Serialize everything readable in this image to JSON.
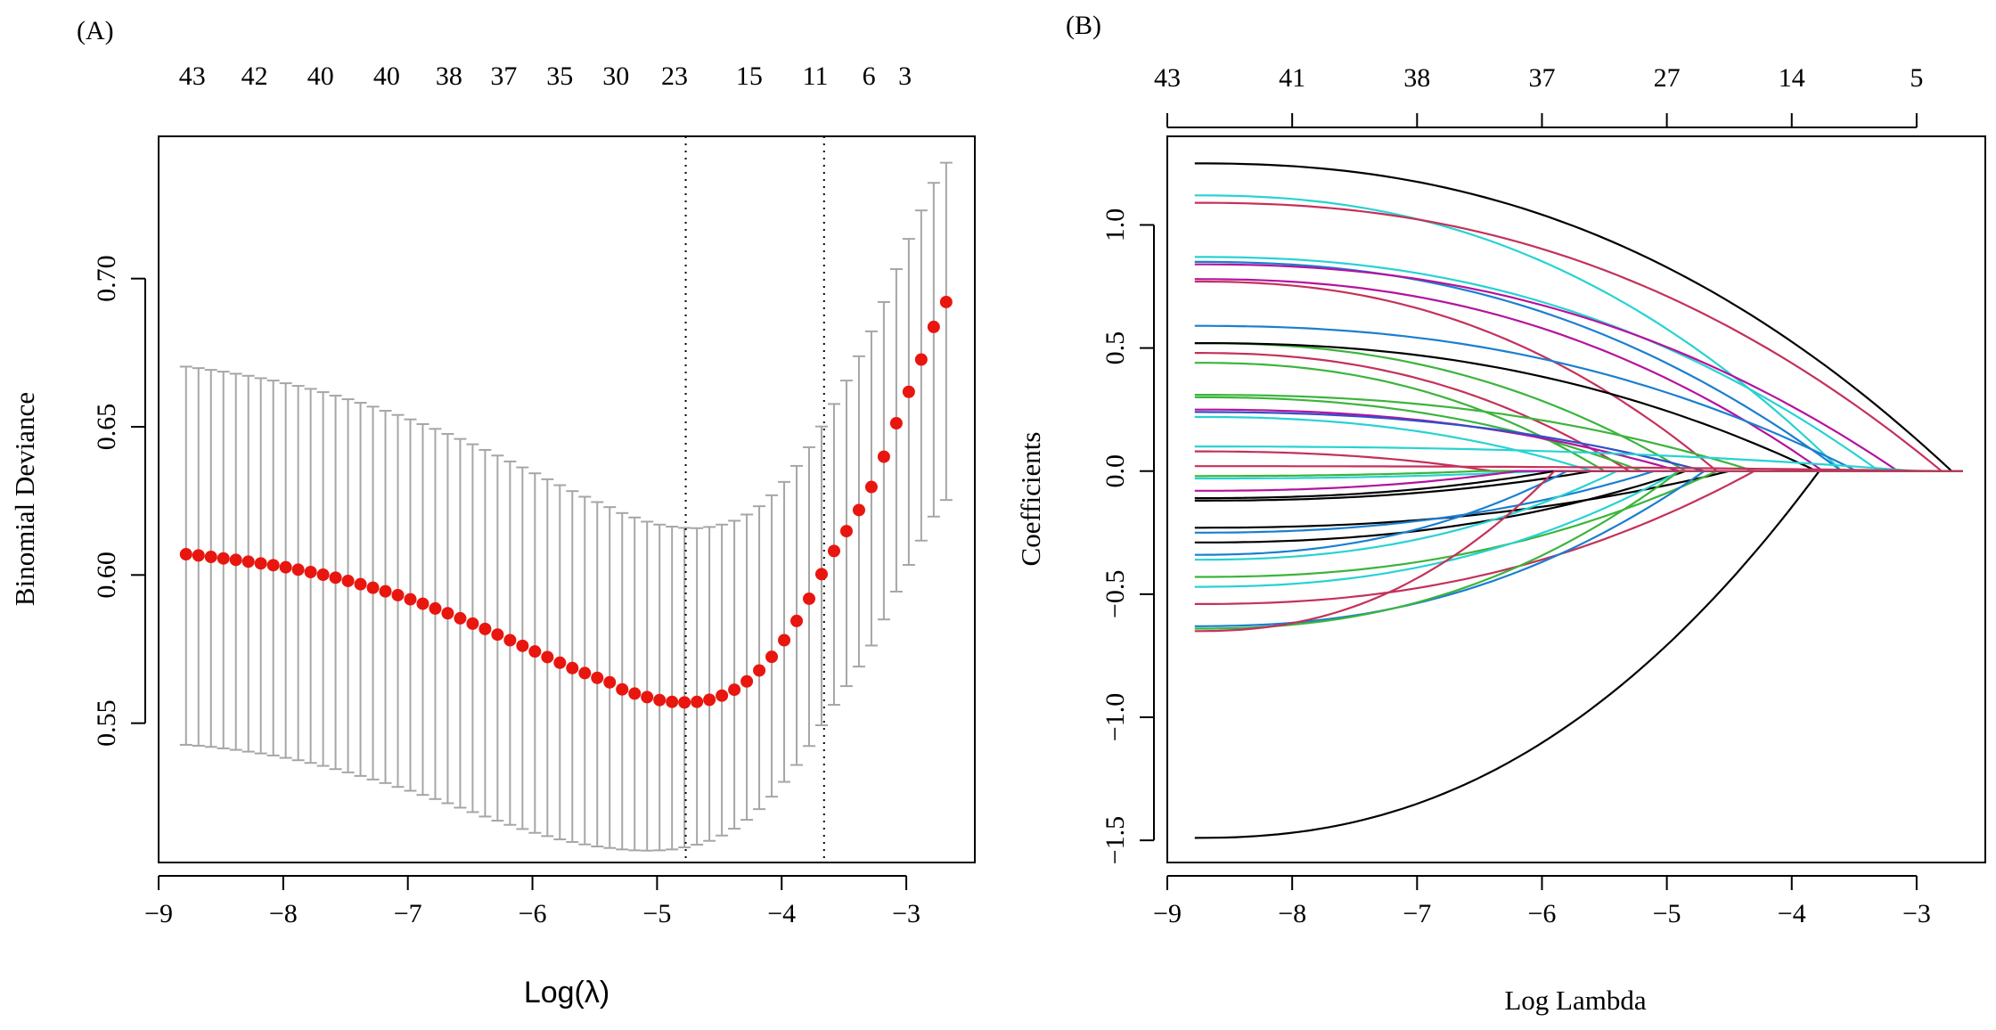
{
  "chart_data": [
    {
      "panel_label": "(A)",
      "type": "scatter",
      "subtype": "cross-validation error plot with error bars",
      "title": "",
      "xlabel": "Log(λ)",
      "ylabel": "Binomial Deviance",
      "xlim": [
        -9.0,
        -2.45
      ],
      "ylim": [
        0.503,
        0.748
      ],
      "x_ticks": [
        -9,
        -8,
        -7,
        -6,
        -5,
        -4,
        -3
      ],
      "x_tick_labels": [
        "−9",
        "−8",
        "−7",
        "−6",
        "−5",
        "−4",
        "−3"
      ],
      "y_ticks": [
        0.55,
        0.6,
        0.65,
        0.7
      ],
      "y_tick_labels": [
        "0.55",
        "0.60",
        "0.65",
        "0.70"
      ],
      "top_axis_counts": [
        {
          "x": -8.73,
          "label": "43"
        },
        {
          "x": -8.23,
          "label": "42"
        },
        {
          "x": -7.7,
          "label": "40"
        },
        {
          "x": -7.17,
          "label": "40"
        },
        {
          "x": -6.67,
          "label": "38"
        },
        {
          "x": -6.23,
          "label": "37"
        },
        {
          "x": -5.78,
          "label": "35"
        },
        {
          "x": -5.33,
          "label": "30"
        },
        {
          "x": -4.86,
          "label": "23"
        },
        {
          "x": -4.26,
          "label": "15"
        },
        {
          "x": -3.73,
          "label": "11"
        },
        {
          "x": -3.3,
          "label": "6"
        },
        {
          "x": -3.01,
          "label": "3"
        }
      ],
      "vlines": [
        -4.77,
        -3.66
      ],
      "grid": false,
      "point_color": "#e8160f",
      "errorbar_color": "#a6a6a6",
      "series": [
        {
          "name": "cv_mean",
          "x": [
            -8.78,
            -8.68,
            -8.58,
            -8.48,
            -8.38,
            -8.28,
            -8.18,
            -8.08,
            -7.98,
            -7.88,
            -7.78,
            -7.68,
            -7.58,
            -7.48,
            -7.38,
            -7.28,
            -7.18,
            -7.08,
            -6.98,
            -6.88,
            -6.78,
            -6.68,
            -6.58,
            -6.48,
            -6.38,
            -6.28,
            -6.18,
            -6.08,
            -5.98,
            -5.88,
            -5.78,
            -5.68,
            -5.58,
            -5.48,
            -5.38,
            -5.28,
            -5.18,
            -5.08,
            -4.98,
            -4.88,
            -4.78,
            -4.68,
            -4.58,
            -4.48,
            -4.38,
            -4.28,
            -4.18,
            -4.08,
            -3.98,
            -3.88,
            -3.78,
            -3.68,
            -3.58,
            -3.48,
            -3.38,
            -3.28,
            -3.18,
            -3.08,
            -2.98,
            -2.88,
            -2.78,
            -2.68
          ],
          "y": [
            0.607,
            0.6066,
            0.6061,
            0.6056,
            0.6051,
            0.6045,
            0.6039,
            0.6033,
            0.6026,
            0.6018,
            0.601,
            0.6001,
            0.5991,
            0.598,
            0.5969,
            0.5957,
            0.5945,
            0.5932,
            0.5918,
            0.5903,
            0.5887,
            0.5871,
            0.5854,
            0.5836,
            0.5818,
            0.5799,
            0.578,
            0.5761,
            0.5742,
            0.5723,
            0.5704,
            0.5686,
            0.5669,
            0.5653,
            0.5638,
            0.5614,
            0.56,
            0.5588,
            0.5578,
            0.5572,
            0.557,
            0.5572,
            0.5579,
            0.5593,
            0.5613,
            0.5641,
            0.5678,
            0.5724,
            0.578,
            0.5845,
            0.592,
            0.6003,
            0.6081,
            0.6148,
            0.6219,
            0.6297,
            0.6399,
            0.6512,
            0.6618,
            0.6727,
            0.6837,
            0.6921
          ],
          "lower": [
            0.5427,
            0.5424,
            0.542,
            0.5415,
            0.541,
            0.5404,
            0.5398,
            0.5391,
            0.5383,
            0.5375,
            0.5366,
            0.5356,
            0.5345,
            0.5334,
            0.5322,
            0.531,
            0.5298,
            0.5285,
            0.5272,
            0.5258,
            0.5244,
            0.523,
            0.5215,
            0.52,
            0.5185,
            0.5171,
            0.5157,
            0.5143,
            0.513,
            0.5119,
            0.5108,
            0.5099,
            0.5091,
            0.5084,
            0.5079,
            0.5074,
            0.5071,
            0.507,
            0.5071,
            0.5074,
            0.5081,
            0.509,
            0.5103,
            0.5121,
            0.5144,
            0.5174,
            0.521,
            0.5252,
            0.5302,
            0.5359,
            0.5423,
            0.5493,
            0.5562,
            0.5625,
            0.5691,
            0.5762,
            0.585,
            0.5944,
            0.6034,
            0.6116,
            0.6197,
            0.6253
          ],
          "upper": [
            0.6703,
            0.6698,
            0.6692,
            0.6686,
            0.6679,
            0.6672,
            0.6664,
            0.6656,
            0.6647,
            0.6638,
            0.6628,
            0.6617,
            0.6605,
            0.6593,
            0.6581,
            0.6568,
            0.6554,
            0.654,
            0.6525,
            0.6509,
            0.6493,
            0.6476,
            0.6459,
            0.6441,
            0.6422,
            0.6403,
            0.6383,
            0.6363,
            0.6343,
            0.6323,
            0.6303,
            0.6283,
            0.6264,
            0.6246,
            0.6229,
            0.6209,
            0.6194,
            0.618,
            0.617,
            0.6163,
            0.6159,
            0.6158,
            0.6162,
            0.617,
            0.6183,
            0.6204,
            0.6232,
            0.6269,
            0.6314,
            0.6368,
            0.6431,
            0.6501,
            0.6577,
            0.6656,
            0.6738,
            0.6822,
            0.6921,
            0.7032,
            0.7134,
            0.723,
            0.7323,
            0.7391
          ]
        }
      ]
    },
    {
      "panel_label": "(B)",
      "type": "line",
      "subtype": "lasso coefficient paths",
      "title": "",
      "xlabel": "Log Lambda",
      "ylabel": "Coefficients",
      "xlim": [
        -9.0,
        -2.45
      ],
      "ylim": [
        -1.59,
        1.36
      ],
      "x_ticks": [
        -9,
        -8,
        -7,
        -6,
        -5,
        -4,
        -3
      ],
      "x_tick_labels": [
        "−9",
        "−8",
        "−7",
        "−6",
        "−5",
        "−4",
        "−3"
      ],
      "y_ticks": [
        -1.5,
        -1.0,
        -0.5,
        0.0,
        0.5,
        1.0
      ],
      "y_tick_labels": [
        "−1.5",
        "−1.0",
        "−0.5",
        "0.0",
        "0.5",
        "1.0"
      ],
      "top_axis_counts": [
        {
          "x": -9,
          "label": "43"
        },
        {
          "x": -8,
          "label": "41"
        },
        {
          "x": -7,
          "label": "38"
        },
        {
          "x": -6,
          "label": "37"
        },
        {
          "x": -5,
          "label": "27"
        },
        {
          "x": -4,
          "label": "14"
        },
        {
          "x": -3,
          "label": "5"
        }
      ],
      "x_start": -8.78,
      "grid": false,
      "series": [
        {
          "c0": 1.25,
          "zero_at": -2.72,
          "color": "#000000"
        },
        {
          "c0": -1.49,
          "zero_at": -3.78,
          "color": "#000000"
        },
        {
          "c0": 1.12,
          "zero_at": -3.6,
          "color": "#28d2d2"
        },
        {
          "c0": 1.09,
          "zero_at": -2.8,
          "color": "#c4315a"
        },
        {
          "c0": 0.87,
          "zero_at": -3.3,
          "color": "#28d2d2"
        },
        {
          "c0": 0.85,
          "zero_at": -3.6,
          "color": "#1a7fd0"
        },
        {
          "c0": 0.84,
          "zero_at": -3.15,
          "color": "#b4139e"
        },
        {
          "c0": 0.78,
          "zero_at": -3.75,
          "color": "#b4139e"
        },
        {
          "c0": 0.77,
          "zero_at": -4.6,
          "color": "#c4315a"
        },
        {
          "c0": 0.59,
          "zero_at": -3.48,
          "color": "#1a7fd0"
        },
        {
          "c0": 0.52,
          "zero_at": -4.85,
          "color": "#3cb43c"
        },
        {
          "c0": 0.52,
          "zero_at": -3.8,
          "color": "#000000"
        },
        {
          "c0": 0.48,
          "zero_at": -5.3,
          "color": "#c4315a"
        },
        {
          "c0": 0.44,
          "zero_at": -5.5,
          "color": "#3cb43c"
        },
        {
          "c0": 0.31,
          "zero_at": -4.3,
          "color": "#3cb43c"
        },
        {
          "c0": 0.3,
          "zero_at": -5.2,
          "color": "#3cb43c"
        },
        {
          "c0": 0.25,
          "zero_at": -4.9,
          "color": "#b4139e"
        },
        {
          "c0": 0.24,
          "zero_at": -4.7,
          "color": "#3050c8"
        },
        {
          "c0": 0.22,
          "zero_at": -5.6,
          "color": "#28d2d2"
        },
        {
          "c0": 0.1,
          "zero_at": -3.0,
          "color": "#28d2d2"
        },
        {
          "c0": 0.08,
          "zero_at": -6.4,
          "color": "#c4315a"
        },
        {
          "c0": 0.02,
          "zero_at": -2.8,
          "color": "#c4315a"
        },
        {
          "c0": -0.02,
          "zero_at": -6.5,
          "color": "#3cb43c"
        },
        {
          "c0": -0.03,
          "zero_at": -6.0,
          "color": "#28d2d2"
        },
        {
          "c0": -0.08,
          "zero_at": -6.2,
          "color": "#b4139e"
        },
        {
          "c0": -0.11,
          "zero_at": -5.9,
          "color": "#000000"
        },
        {
          "c0": -0.12,
          "zero_at": -5.6,
          "color": "#000000"
        },
        {
          "c0": -0.23,
          "zero_at": -4.5,
          "color": "#000000"
        },
        {
          "c0": -0.25,
          "zero_at": -5.1,
          "color": "#1a7fd0"
        },
        {
          "c0": -0.29,
          "zero_at": -4.85,
          "color": "#000000"
        },
        {
          "c0": -0.34,
          "zero_at": -5.8,
          "color": "#1a7fd0"
        },
        {
          "c0": -0.36,
          "zero_at": -5.4,
          "color": "#28d2d2"
        },
        {
          "c0": -0.43,
          "zero_at": -4.6,
          "color": "#3cb43c"
        },
        {
          "c0": -0.47,
          "zero_at": -4.9,
          "color": "#28d2d2"
        },
        {
          "c0": -0.54,
          "zero_at": -4.3,
          "color": "#c4315a"
        },
        {
          "c0": -0.63,
          "zero_at": -4.7,
          "color": "#1a7fd0"
        },
        {
          "c0": -0.64,
          "zero_at": -4.9,
          "color": "#3cb43c"
        },
        {
          "c0": -0.65,
          "zero_at": -5.9,
          "color": "#c4315a"
        }
      ]
    }
  ]
}
